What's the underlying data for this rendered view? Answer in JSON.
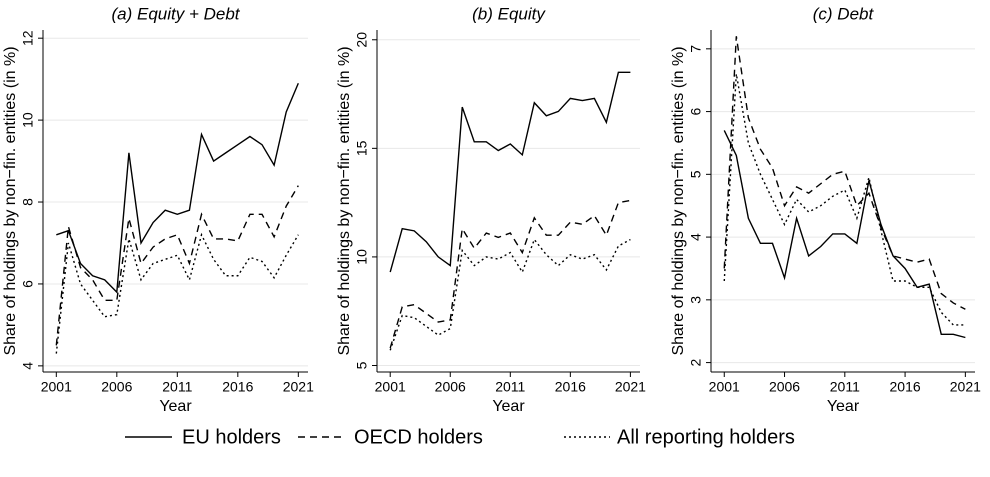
{
  "chart_data": [
    {
      "type": "line",
      "title": "(a) Equity + Debt",
      "x_label": "Year",
      "y_label": "Share of holdings by non−fin. entities (in %)",
      "x": [
        2001,
        2002,
        2003,
        2004,
        2005,
        2006,
        2007,
        2008,
        2009,
        2010,
        2011,
        2012,
        2013,
        2014,
        2015,
        2016,
        2017,
        2018,
        2019,
        2020,
        2021
      ],
      "xlim": [
        1999.9,
        2021.8
      ],
      "xticks": [
        2001,
        2006,
        2011,
        2016,
        2021
      ],
      "ylim": [
        3.85,
        12.2
      ],
      "yticks": [
        4,
        6,
        8,
        10,
        12
      ],
      "grid": true,
      "series": [
        {
          "name": "EU holders",
          "color": "#000000",
          "dash": "solid",
          "values": [
            7.2,
            7.3,
            6.5,
            6.2,
            6.1,
            5.8,
            9.2,
            7.0,
            7.5,
            7.8,
            7.7,
            7.8,
            9.65,
            9.0,
            9.2,
            9.4,
            9.6,
            9.4,
            8.9,
            10.2,
            10.9
          ]
        },
        {
          "name": "OECD holders",
          "color": "#000000",
          "dash": "dashed",
          "values": [
            4.5,
            7.4,
            6.4,
            6.1,
            5.6,
            5.6,
            7.6,
            6.5,
            6.9,
            7.1,
            7.2,
            6.5,
            7.7,
            7.1,
            7.1,
            7.05,
            7.7,
            7.7,
            7.15,
            7.9,
            8.4
          ]
        },
        {
          "name": "All reporting holders",
          "color": "#000000",
          "dash": "dotted",
          "values": [
            4.3,
            7.0,
            6.0,
            5.6,
            5.2,
            5.25,
            7.1,
            6.1,
            6.5,
            6.6,
            6.7,
            6.1,
            7.2,
            6.6,
            6.2,
            6.2,
            6.65,
            6.55,
            6.15,
            6.7,
            7.2
          ]
        }
      ]
    },
    {
      "type": "line",
      "title": "(b) Equity",
      "x_label": "Year",
      "y_label": "Share of holdings by non−fin. entities (in %)",
      "x": [
        2001,
        2002,
        2003,
        2004,
        2005,
        2006,
        2007,
        2008,
        2009,
        2010,
        2011,
        2012,
        2013,
        2014,
        2015,
        2016,
        2017,
        2018,
        2019,
        2020,
        2021
      ],
      "xlim": [
        1999.9,
        2021.8
      ],
      "xticks": [
        2001,
        2006,
        2011,
        2016,
        2021
      ],
      "ylim": [
        4.7,
        20.45
      ],
      "yticks": [
        5,
        10,
        15,
        20
      ],
      "grid": true,
      "series": [
        {
          "name": "EU holders",
          "color": "#000000",
          "dash": "solid",
          "values": [
            9.3,
            11.3,
            11.2,
            10.7,
            10.0,
            9.6,
            16.9,
            15.3,
            15.3,
            14.9,
            15.2,
            14.7,
            17.1,
            16.5,
            16.7,
            17.3,
            17.2,
            17.3,
            16.2,
            18.5,
            18.5
          ]
        },
        {
          "name": "OECD holders",
          "color": "#000000",
          "dash": "dashed",
          "values": [
            5.8,
            7.7,
            7.8,
            7.4,
            7.0,
            7.1,
            11.3,
            10.4,
            11.1,
            10.9,
            11.1,
            10.2,
            11.8,
            11.0,
            11.0,
            11.6,
            11.5,
            11.9,
            11.0,
            12.5,
            12.6
          ]
        },
        {
          "name": "All reporting holders",
          "color": "#000000",
          "dash": "dotted",
          "values": [
            5.7,
            7.3,
            7.2,
            6.8,
            6.4,
            6.7,
            10.3,
            9.6,
            10.0,
            9.9,
            10.2,
            9.3,
            10.8,
            10.1,
            9.6,
            10.1,
            9.9,
            10.1,
            9.4,
            10.5,
            10.8
          ]
        }
      ]
    },
    {
      "type": "line",
      "title": "(c) Debt",
      "x_label": "Year",
      "y_label": "Share of holdings by non−fin. entities (in %)",
      "x": [
        2001,
        2002,
        2003,
        2004,
        2005,
        2006,
        2007,
        2008,
        2009,
        2010,
        2011,
        2012,
        2013,
        2014,
        2015,
        2016,
        2017,
        2018,
        2019,
        2020,
        2021
      ],
      "xlim": [
        1999.9,
        2021.8
      ],
      "xticks": [
        2001,
        2006,
        2011,
        2016,
        2021
      ],
      "ylim": [
        1.85,
        7.3
      ],
      "yticks": [
        2,
        3,
        4,
        5,
        6,
        7
      ],
      "grid": true,
      "series": [
        {
          "name": "EU holders",
          "color": "#000000",
          "dash": "solid",
          "values": [
            5.7,
            5.3,
            4.3,
            3.9,
            3.9,
            3.35,
            4.3,
            3.7,
            3.85,
            4.05,
            4.05,
            3.9,
            4.9,
            4.2,
            3.7,
            3.5,
            3.2,
            3.25,
            2.45,
            2.45,
            2.4
          ]
        },
        {
          "name": "OECD holders",
          "color": "#000000",
          "dash": "dashed",
          "values": [
            3.5,
            7.2,
            5.9,
            5.4,
            5.1,
            4.5,
            4.8,
            4.7,
            4.85,
            5.0,
            5.05,
            4.5,
            4.7,
            4.15,
            3.7,
            3.65,
            3.6,
            3.65,
            3.1,
            2.95,
            2.85
          ]
        },
        {
          "name": "All reporting holders",
          "color": "#000000",
          "dash": "dotted",
          "values": [
            3.3,
            6.6,
            5.5,
            5.0,
            4.6,
            4.2,
            4.6,
            4.4,
            4.5,
            4.65,
            4.75,
            4.3,
            4.95,
            4.1,
            3.3,
            3.3,
            3.2,
            3.2,
            2.8,
            2.6,
            2.6
          ]
        }
      ]
    }
  ]
}
